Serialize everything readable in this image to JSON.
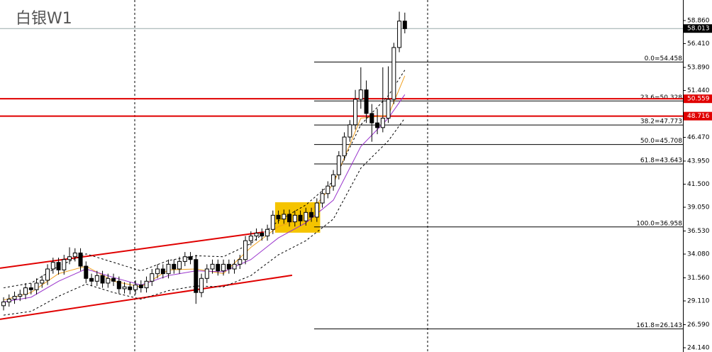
{
  "chart_data": {
    "type": "candlestick",
    "title": "白银W1",
    "ylim": [
      23.69,
      61.04
    ],
    "xlim": [
      -0.65,
      123.6
    ],
    "yticks": [
      {
        "value": 58.86,
        "label": "58.860"
      },
      {
        "value": 56.41,
        "label": "56.410"
      },
      {
        "value": 53.89,
        "label": "53.890"
      },
      {
        "value": 51.44,
        "label": "51.440"
      },
      {
        "value": 46.47,
        "label": "46.470"
      },
      {
        "value": 43.95,
        "label": "43.950"
      },
      {
        "value": 41.5,
        "label": "41.500"
      },
      {
        "value": 39.05,
        "label": "39.050"
      },
      {
        "value": 36.53,
        "label": "36.530"
      },
      {
        "value": 34.08,
        "label": "34.080"
      },
      {
        "value": 31.56,
        "label": "31.560"
      },
      {
        "value": 29.11,
        "label": "29.110"
      },
      {
        "value": 26.59,
        "label": "26.590"
      },
      {
        "value": 24.14,
        "label": "24.140"
      }
    ],
    "open": [
      28.6,
      29.0,
      29.3,
      29.6,
      29.8,
      30.5,
      30.3,
      31.0,
      31.3,
      32.5,
      33.2,
      32.4,
      33.5,
      33.8,
      34.2,
      32.8,
      31.5,
      31.2,
      31.8,
      31.0,
      31.5,
      31.2,
      30.4,
      30.6,
      30.3,
      30.8,
      30.5,
      31.2,
      32.0,
      32.5,
      32.0,
      33.0,
      32.5,
      33.3,
      33.8,
      33.5,
      30.0,
      31.5,
      32.5,
      33.0,
      32.3,
      33.0,
      32.5,
      33.0,
      33.5,
      35.5,
      36.0,
      36.3,
      36.0,
      36.7,
      38.2,
      37.8,
      38.3,
      37.5,
      38.2,
      37.6,
      38.5,
      38.0,
      39.5,
      40.5,
      41.3,
      42.5,
      44.5,
      46.5,
      47.8,
      50.5,
      51.5,
      49.0,
      48.0,
      47.5,
      48.5,
      50.5,
      56.0,
      58.8
    ],
    "high": [
      29.5,
      29.8,
      30.1,
      30.3,
      31.0,
      31.0,
      31.5,
      31.8,
      33.0,
      33.7,
      33.7,
      34.0,
      34.8,
      34.7,
      34.7,
      33.3,
      32.0,
      32.3,
      32.3,
      32.0,
      32.0,
      31.7,
      31.1,
      31.1,
      31.3,
      31.3,
      31.7,
      32.5,
      33.0,
      33.0,
      33.5,
      33.5,
      33.8,
      34.3,
      34.3,
      34.0,
      32.0,
      33.0,
      33.5,
      33.5,
      33.5,
      33.5,
      33.5,
      34.0,
      36.0,
      36.5,
      36.8,
      36.8,
      37.2,
      38.7,
      38.7,
      38.8,
      38.8,
      38.7,
      38.7,
      39.0,
      39.0,
      40.0,
      41.0,
      41.8,
      43.0,
      45.0,
      47.0,
      48.3,
      51.5,
      53.9,
      52.5,
      50.0,
      49.5,
      53.9,
      54.0,
      56.5,
      59.8,
      59.7
    ],
    "low": [
      28.1,
      28.5,
      28.8,
      29.1,
      29.3,
      29.8,
      29.8,
      30.5,
      30.8,
      32.0,
      31.9,
      31.9,
      33.0,
      33.3,
      32.3,
      31.0,
      30.7,
      30.7,
      30.5,
      30.5,
      30.7,
      29.9,
      29.9,
      29.8,
      29.8,
      30.0,
      30.0,
      30.7,
      31.5,
      31.5,
      31.5,
      32.0,
      32.0,
      32.8,
      33.0,
      28.8,
      29.5,
      31.0,
      32.0,
      31.8,
      31.8,
      32.0,
      32.0,
      32.5,
      33.0,
      35.0,
      35.5,
      35.5,
      35.5,
      36.2,
      37.3,
      37.3,
      37.0,
      37.0,
      37.1,
      37.1,
      37.5,
      37.5,
      39.0,
      40.0,
      40.8,
      42.0,
      44.0,
      46.0,
      47.3,
      49.5,
      48.0,
      46.0,
      46.8,
      47.0,
      48.0,
      50.0,
      55.5,
      57.5
    ],
    "close": [
      29.0,
      29.3,
      29.6,
      29.8,
      30.5,
      30.3,
      31.0,
      31.3,
      32.5,
      33.2,
      32.4,
      33.5,
      33.8,
      34.2,
      32.8,
      31.5,
      31.2,
      31.8,
      31.0,
      31.5,
      31.2,
      30.4,
      30.6,
      30.3,
      30.8,
      30.5,
      31.2,
      32.0,
      32.5,
      32.0,
      33.0,
      32.5,
      33.3,
      33.8,
      33.5,
      30.0,
      31.5,
      32.5,
      33.0,
      32.3,
      33.0,
      32.5,
      33.0,
      33.5,
      35.5,
      36.0,
      36.3,
      36.0,
      36.7,
      38.2,
      37.8,
      38.3,
      37.5,
      38.2,
      37.6,
      38.5,
      38.0,
      39.5,
      40.5,
      41.3,
      42.5,
      44.5,
      46.5,
      47.8,
      50.5,
      51.5,
      49.0,
      48.0,
      47.5,
      48.5,
      50.5,
      56.0,
      58.8,
      58.0
    ],
    "series": [
      {
        "color": "#f0a020",
        "dash": false,
        "x": [
          0,
          5,
          10,
          15,
          20,
          25,
          30,
          35,
          40,
          45,
          50,
          55,
          60,
          65,
          70,
          73
        ],
        "values": [
          29.2,
          30.0,
          32.0,
          32.8,
          31.2,
          30.6,
          32.4,
          32.5,
          32.0,
          34.8,
          37.0,
          38.0,
          41.5,
          48.5,
          48.8,
          53.0
        ]
      },
      {
        "color": "#9933cc",
        "dash": false,
        "x": [
          0,
          5,
          10,
          15,
          20,
          25,
          30,
          35,
          40,
          45,
          50,
          55,
          60,
          65,
          70,
          73
        ],
        "values": [
          29.0,
          29.5,
          31.2,
          32.5,
          31.6,
          30.8,
          31.8,
          32.3,
          32.2,
          33.5,
          35.8,
          37.4,
          39.8,
          45.5,
          48.5,
          51.0
        ]
      },
      {
        "color": "#000000",
        "dash": true,
        "x": [
          0,
          5,
          10,
          15,
          20,
          25,
          30,
          35,
          40,
          45,
          50,
          55,
          60,
          65,
          70,
          73
        ],
        "values": [
          30.5,
          31.0,
          32.8,
          34.1,
          33.2,
          32.3,
          33.4,
          33.9,
          33.8,
          35.2,
          37.6,
          39.3,
          41.8,
          47.8,
          50.9,
          53.6
        ]
      },
      {
        "color": "#000000",
        "dash": true,
        "x": [
          0,
          5,
          10,
          15,
          20,
          25,
          30,
          35,
          40,
          45,
          50,
          55,
          60,
          65,
          70,
          73
        ],
        "values": [
          27.6,
          28.0,
          29.6,
          30.9,
          30.0,
          29.3,
          30.2,
          30.7,
          30.6,
          31.8,
          34.0,
          35.5,
          37.8,
          43.2,
          46.1,
          48.5
        ]
      }
    ],
    "trendlines": [
      {
        "color": "#e00000",
        "x": [
          -0.65,
          47.35
        ],
        "values": [
          32.58,
          36.42
        ]
      },
      {
        "color": "#e00000",
        "x": [
          -0.65,
          52.5
        ],
        "values": [
          27.16,
          31.83
        ]
      }
    ],
    "highlight": {
      "color": "#f5c400",
      "xlim": [
        49.4,
        57.6
      ],
      "ylim": [
        36.35,
        39.58
      ]
    },
    "fib_start": 56.5,
    "fib_levels": [
      {
        "value": 54.458,
        "label": "0.0=54.458"
      },
      {
        "value": 50.328,
        "label": "23.6=50.328"
      },
      {
        "value": 47.773,
        "label": "38.2=47.773"
      },
      {
        "value": 45.708,
        "label": "50.0=45.708"
      },
      {
        "value": 43.643,
        "label": "61.8=43.643"
      },
      {
        "value": 36.958,
        "label": "100.0=36.958"
      },
      {
        "value": 26.143,
        "label": "161.8=26.143"
      }
    ],
    "hlines": [
      50.559,
      48.716
    ],
    "hline_color": "#e00000",
    "current_price": 58.013
  }
}
